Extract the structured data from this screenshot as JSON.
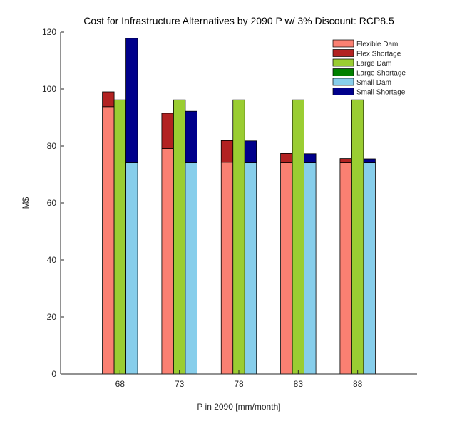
{
  "chart_data": {
    "type": "bar",
    "stacked_groups": true,
    "title": "Cost for Infrastructure Alternatives by 2090 P w/ 3% Discount: RCP8.5",
    "xlabel": "P in 2090 [mm/month]",
    "ylabel": "M$",
    "ylim": [
      0,
      120
    ],
    "yticks": [
      0,
      20,
      40,
      60,
      80,
      100,
      120
    ],
    "categories": [
      "68",
      "73",
      "78",
      "83",
      "88"
    ],
    "x_range": [
      63,
      93
    ],
    "legend_placement": "top-right",
    "grid": false,
    "groups": [
      {
        "name": "Flexible",
        "base_series": 0,
        "top_series": 1
      },
      {
        "name": "Large",
        "base_series": 2,
        "top_series": 3
      },
      {
        "name": "Small",
        "base_series": 4,
        "top_series": 5
      }
    ],
    "series": [
      {
        "name": "Flexible Dam",
        "color": "#FA8072",
        "values": [
          93.8,
          79.1,
          74.3,
          74.1,
          74.1
        ]
      },
      {
        "name": "Flex Shortage",
        "color": "#B22222",
        "values": [
          5.2,
          12.4,
          7.6,
          3.3,
          1.5
        ]
      },
      {
        "name": "Large Dam",
        "color": "#9ACD32",
        "values": [
          96.2,
          96.2,
          96.2,
          96.2,
          96.2
        ]
      },
      {
        "name": "Large Shortage",
        "color": "#008000",
        "values": [
          0,
          0,
          0,
          0,
          0
        ]
      },
      {
        "name": "Small Dam",
        "color": "#87CEEB",
        "values": [
          74.1,
          74.1,
          74.1,
          74.1,
          74.1
        ]
      },
      {
        "name": "Small Shortage",
        "color": "#00008B",
        "values": [
          43.7,
          18.1,
          7.7,
          3.2,
          1.4
        ]
      }
    ]
  }
}
